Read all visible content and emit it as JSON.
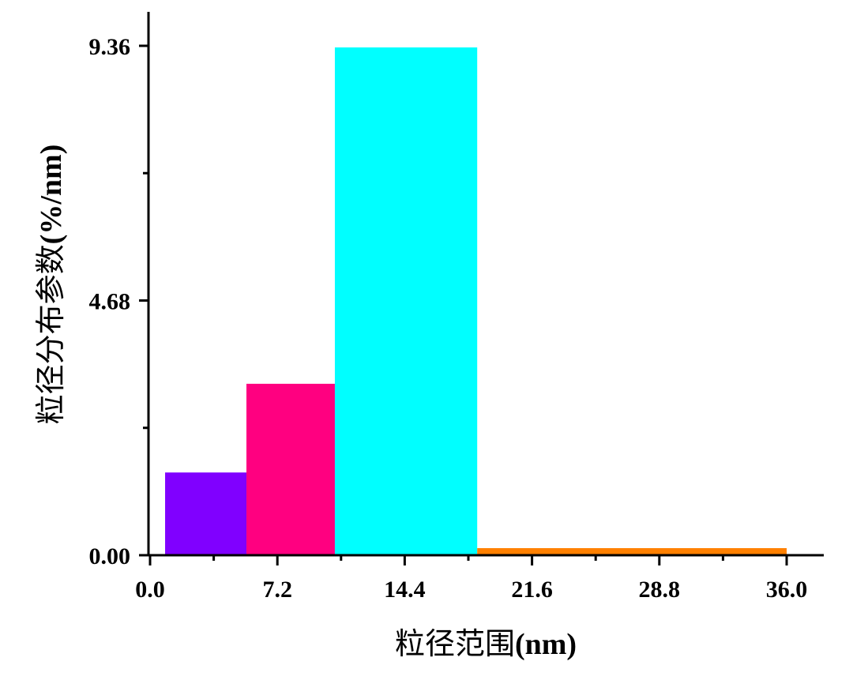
{
  "chart_data": {
    "type": "bar",
    "title": "",
    "xlabel": "粒径范围(nm)",
    "xlabel_main": "粒径范围",
    "xlabel_unit": "(nm)",
    "ylabel": "粒径分布参数(%/nm)",
    "ylabel_main": "粒径分布参数",
    "ylabel_unit": "(%/nm)",
    "xlim": [
      0.0,
      36.0
    ],
    "ylim": [
      0.0,
      9.36
    ],
    "x_ticks": [
      "0.0",
      "7.2",
      "14.4",
      "21.6",
      "28.8",
      "36.0"
    ],
    "x_tick_values": [
      0.0,
      7.2,
      14.4,
      21.6,
      28.8,
      36.0
    ],
    "x_minor_ticks": [
      3.6,
      10.8,
      18.0,
      25.2,
      32.4
    ],
    "y_ticks": [
      "0.00",
      "4.68",
      "9.36"
    ],
    "y_tick_values": [
      0.0,
      4.68,
      9.36
    ],
    "y_minor_ticks": [
      2.34,
      7.02
    ],
    "grid": false,
    "legend": null,
    "bars": [
      {
        "x_start": 0.85,
        "x_end": 5.45,
        "value": 1.52,
        "color": "#8000FF"
      },
      {
        "x_start": 5.45,
        "x_end": 10.45,
        "value": 3.15,
        "color": "#FF0080"
      },
      {
        "x_start": 10.45,
        "x_end": 18.5,
        "value": 9.33,
        "color": "#00FFFF"
      },
      {
        "x_start": 18.5,
        "x_end": 36.0,
        "value": 0.13,
        "color": "#FF8000"
      }
    ],
    "categories": [
      "0.85–5.45",
      "5.45–10.45",
      "10.45–18.5",
      "18.5–36.0"
    ],
    "values": [
      1.52,
      3.15,
      9.33,
      0.13
    ]
  }
}
